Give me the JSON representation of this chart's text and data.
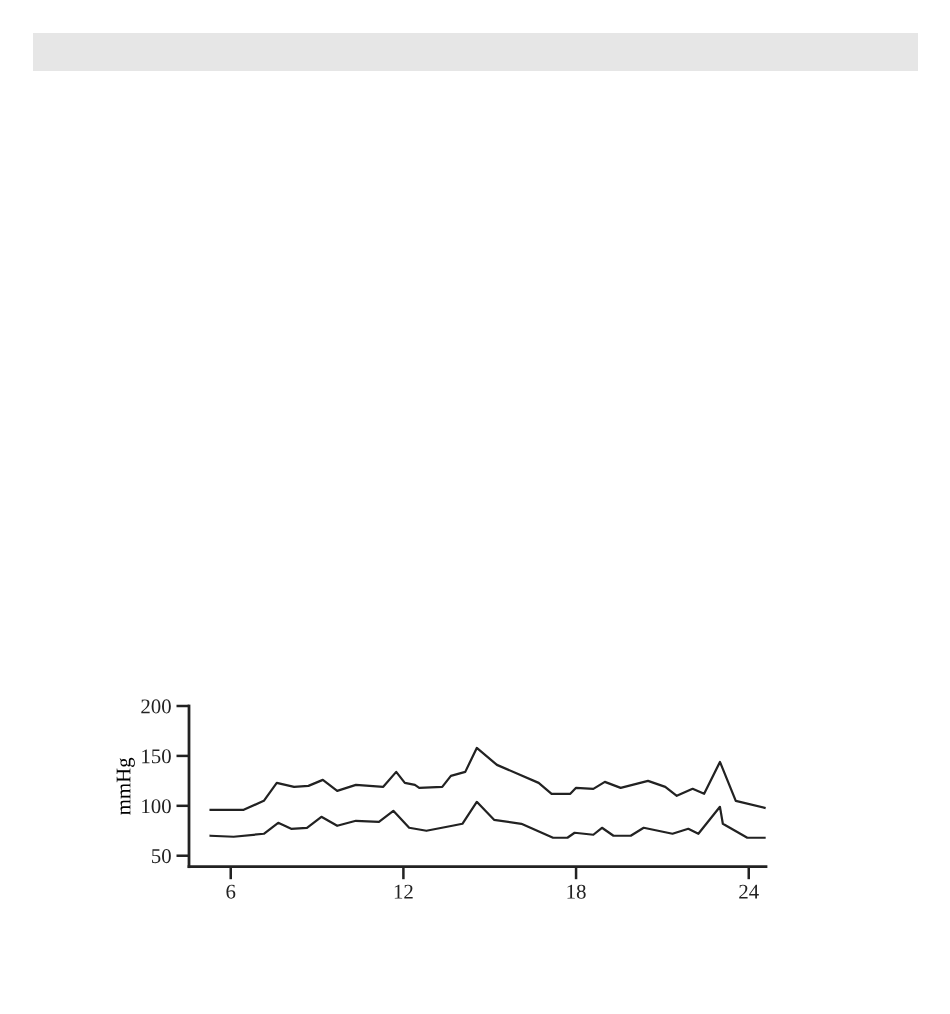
{
  "chart_data": {
    "type": "line",
    "ylabel": "mmHg",
    "xlim": [
      4.55,
      24.6
    ],
    "ylim": [
      39,
      200
    ],
    "xticks": [
      6,
      12,
      18,
      24
    ],
    "yticks": [
      50,
      100,
      150,
      200
    ],
    "grid": false,
    "marker": "none",
    "line_style": "solid",
    "series": [
      {
        "color": "#222222",
        "x": [
          5.3,
          6.45,
          7.15,
          7.6,
          8.2,
          8.7,
          9.2,
          9.7,
          10.35,
          11.3,
          11.75,
          12.05,
          12.4,
          12.55,
          13.35,
          13.65,
          14.15,
          14.55,
          15.25,
          16.7,
          17.15,
          17.8,
          18.0,
          18.6,
          19.0,
          19.55,
          20.5,
          21.1,
          21.5,
          22.05,
          22.45,
          23.0,
          23.55,
          24.55
        ],
        "values": [
          96,
          96,
          105,
          123,
          119,
          120,
          126,
          115,
          121,
          119,
          134,
          123,
          121,
          118,
          119,
          130,
          134,
          158,
          141,
          123,
          112,
          112,
          118,
          117,
          124,
          118,
          125,
          119,
          110,
          117,
          112,
          144,
          105,
          98
        ]
      },
      {
        "color": "#222222",
        "x": [
          5.3,
          6.1,
          7.15,
          7.65,
          8.1,
          8.65,
          9.15,
          9.7,
          10.35,
          11.15,
          11.65,
          12.2,
          12.8,
          13.7,
          14.05,
          14.55,
          15.15,
          16.1,
          17.2,
          17.7,
          17.95,
          18.6,
          18.9,
          19.3,
          19.9,
          20.35,
          21.35,
          21.9,
          22.25,
          23.0,
          23.1,
          23.95,
          24.55
        ],
        "values": [
          70,
          69,
          72,
          83,
          77,
          78,
          89,
          80,
          85,
          84,
          95,
          78,
          75,
          80,
          82,
          104,
          86,
          82,
          68,
          68,
          73,
          71,
          78,
          70,
          70,
          78,
          72,
          77,
          72,
          99,
          82,
          68,
          68
        ]
      }
    ]
  }
}
